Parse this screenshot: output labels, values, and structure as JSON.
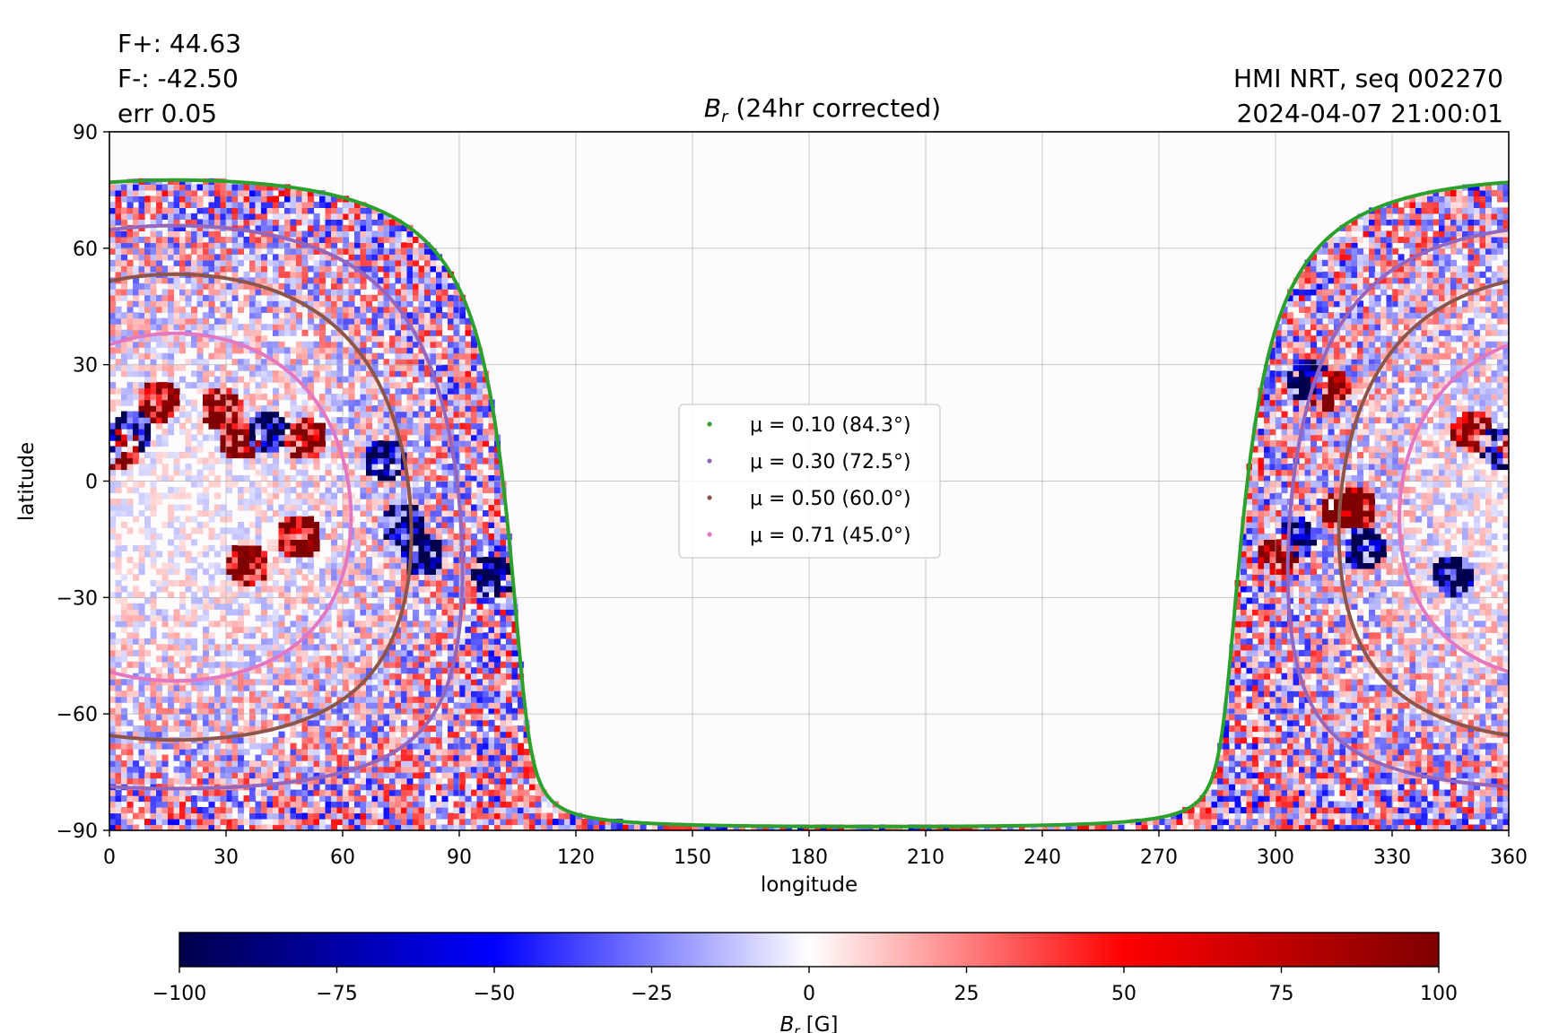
{
  "header": {
    "flux_pos": "F+: 44.63",
    "flux_neg": "F-: -42.50",
    "err": "err 0.05",
    "source": "HMI NRT, seq 002270",
    "timestamp": "2024-04-07 21:00:01"
  },
  "chart_data": {
    "type": "heatmap",
    "title_symbol": "B",
    "title_sub": "r",
    "title_rest": "(24hr corrected)",
    "xlabel": "longitude",
    "ylabel": "latitude",
    "xlim": [
      0,
      360
    ],
    "ylim": [
      -90,
      90
    ],
    "xticks": [
      0,
      30,
      60,
      90,
      120,
      150,
      180,
      210,
      240,
      270,
      300,
      330,
      360
    ],
    "yticks": [
      -90,
      -60,
      -30,
      0,
      30,
      60,
      90
    ],
    "ytick_labels": [
      "−90",
      "−60",
      "−30",
      "0",
      "30",
      "60",
      "90"
    ],
    "grid": true,
    "legend_position": "center",
    "series": [
      {
        "name": "μ = 0.10 (84.3°)",
        "mu": 0.1,
        "color": "#2ca02c"
      },
      {
        "name": "μ = 0.30 (72.5°)",
        "mu": 0.3,
        "color": "#9467bd"
      },
      {
        "name": "μ = 0.50 (60.0°)",
        "mu": 0.5,
        "color": "#8c564b"
      },
      {
        "name": "μ = 0.71 (45.0°)",
        "mu": 0.71,
        "color": "#e377c2"
      }
    ],
    "disk_center": {
      "longitude": 17.0,
      "latitude": -6.7
    },
    "active_regions": [
      {
        "lon": 12,
        "lat": 20,
        "sign": 1
      },
      {
        "lon": 5,
        "lat": 12,
        "sign": -1
      },
      {
        "lon": 2,
        "lat": 8,
        "sign": 1
      },
      {
        "lon": 28,
        "lat": 18,
        "sign": 1
      },
      {
        "lon": 33,
        "lat": 10,
        "sign": 1
      },
      {
        "lon": 40,
        "lat": 12,
        "sign": -1
      },
      {
        "lon": 50,
        "lat": 10,
        "sign": 1
      },
      {
        "lon": 70,
        "lat": 5,
        "sign": -1
      },
      {
        "lon": 35,
        "lat": -22,
        "sign": 1
      },
      {
        "lon": 48,
        "lat": -15,
        "sign": 1
      },
      {
        "lon": 75,
        "lat": -12,
        "sign": -1
      },
      {
        "lon": 80,
        "lat": -20,
        "sign": -1
      },
      {
        "lon": 98,
        "lat": -25,
        "sign": -1
      },
      {
        "lon": 308,
        "lat": 25,
        "sign": -1
      },
      {
        "lon": 313,
        "lat": 23,
        "sign": 1
      },
      {
        "lon": 316,
        "lat": -8,
        "sign": 1
      },
      {
        "lon": 320,
        "lat": -8,
        "sign": 1
      },
      {
        "lon": 305,
        "lat": -15,
        "sign": -1
      },
      {
        "lon": 300,
        "lat": -20,
        "sign": 1
      },
      {
        "lon": 322,
        "lat": -18,
        "sign": -1
      },
      {
        "lon": 345,
        "lat": -25,
        "sign": -1
      },
      {
        "lon": 357,
        "lat": 8,
        "sign": -1
      },
      {
        "lon": 350,
        "lat": 12,
        "sign": 1
      }
    ],
    "colorbar": {
      "label_symbol": "B",
      "label_sub": "r",
      "label_unit": "[G]",
      "vmin": -100,
      "vmax": 100,
      "ticks": [
        -100,
        -75,
        -50,
        -25,
        0,
        25,
        50,
        75,
        100
      ],
      "tick_labels": [
        "−100",
        "−75",
        "−50",
        "−25",
        "0",
        "25",
        "50",
        "75",
        "100"
      ],
      "colormap": "seismic",
      "colors": [
        "#00004c",
        "#0000ff",
        "#ffffff",
        "#ff0000",
        "#7f0000"
      ]
    }
  }
}
